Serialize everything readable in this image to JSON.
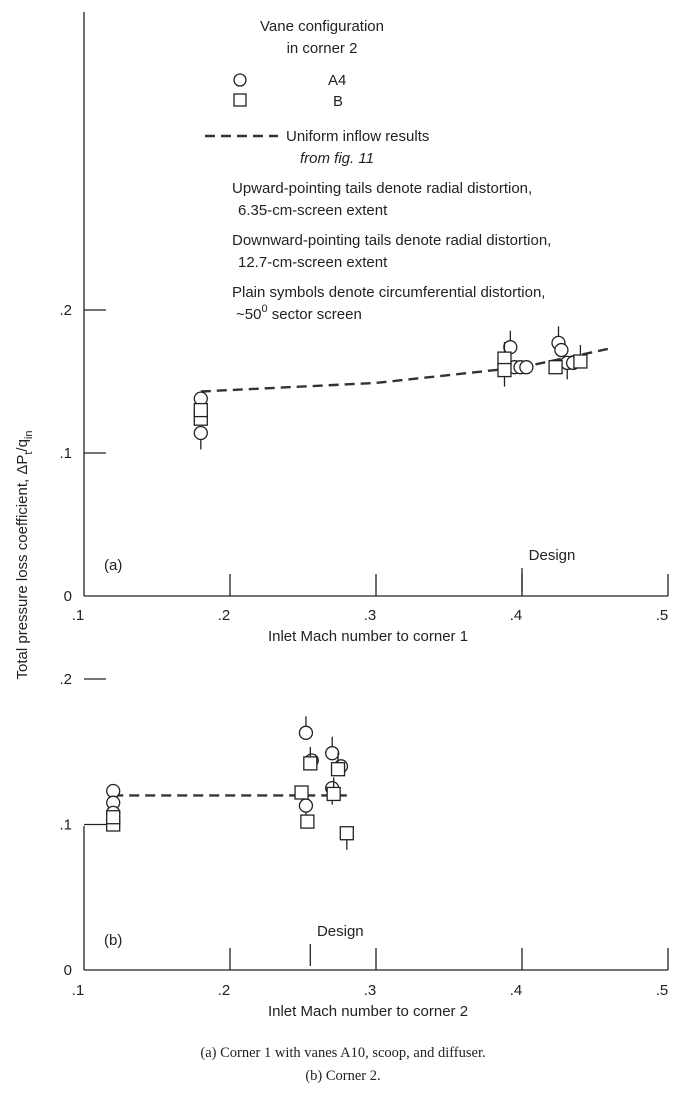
{
  "legend": {
    "heading_1": "Vane configuration",
    "heading_2": "in corner 2",
    "a4_label": "A4",
    "b_label": "B",
    "uniform_1": "Uniform inflow results",
    "uniform_2": "from fig. 11",
    "note_up_1": "Upward-pointing tails denote radial distortion,",
    "note_up_2": "6.35-cm-screen extent",
    "note_down_1": "Downward-pointing tails denote radial distortion,",
    "note_down_2": "12.7-cm-screen extent",
    "note_plain_1": "Plain symbols denote circumferential distortion,",
    "note_plain_2": "~50",
    "note_plain_deg": "0",
    "note_plain_3": " sector screen"
  },
  "ylabel_main": "Total pressure loss coefficient, ΔP",
  "ylabel_sub_t": "t",
  "ylabel_slash": "/q",
  "ylabel_sub_in": "in",
  "captions": {
    "a": "(a) Corner 1 with vanes A10, scoop, and diffuser.",
    "b": "(b) Corner 2."
  },
  "chart_data": [
    {
      "type": "scatter",
      "panel_label": "(a)",
      "xlabel": "Inlet Mach number to corner 1",
      "xlim": [
        0.1,
        0.5
      ],
      "ylim": [
        0,
        0.3
      ],
      "x_ticks": [
        0.1,
        0.2,
        0.3,
        0.4,
        0.5
      ],
      "x_tick_labels": [
        ".1",
        ".2",
        ".3",
        ".4",
        ".5"
      ],
      "y_ticks": [
        0,
        0.1,
        0.2
      ],
      "y_tick_labels": [
        "0",
        ".1",
        ".2"
      ],
      "design_mach": 0.4,
      "design_label": "Design",
      "uniform_inflow_line": {
        "x": [
          0.18,
          0.3,
          0.4,
          0.46
        ],
        "y": [
          0.143,
          0.149,
          0.16,
          0.173
        ]
      },
      "series": [
        {
          "name": "A4",
          "marker": "circle",
          "points": [
            {
              "x": 0.18,
              "y": 0.114,
              "tail": "down"
            },
            {
              "x": 0.18,
              "y": 0.138,
              "tail": "none"
            },
            {
              "x": 0.392,
              "y": 0.174,
              "tail": "up"
            },
            {
              "x": 0.395,
              "y": 0.16,
              "tail": "none"
            },
            {
              "x": 0.399,
              "y": 0.16,
              "tail": "none"
            },
            {
              "x": 0.403,
              "y": 0.16,
              "tail": "none"
            },
            {
              "x": 0.425,
              "y": 0.177,
              "tail": "up"
            },
            {
              "x": 0.427,
              "y": 0.172,
              "tail": "none"
            },
            {
              "x": 0.431,
              "y": 0.163,
              "tail": "down"
            },
            {
              "x": 0.435,
              "y": 0.163,
              "tail": "none"
            }
          ]
        },
        {
          "name": "B",
          "marker": "square",
          "points": [
            {
              "x": 0.18,
              "y": 0.124,
              "tail": "none"
            },
            {
              "x": 0.18,
              "y": 0.13,
              "tail": "none"
            },
            {
              "x": 0.388,
              "y": 0.166,
              "tail": "up"
            },
            {
              "x": 0.388,
              "y": 0.158,
              "tail": "down"
            },
            {
              "x": 0.423,
              "y": 0.16,
              "tail": "none"
            },
            {
              "x": 0.44,
              "y": 0.164,
              "tail": "up"
            }
          ]
        }
      ]
    },
    {
      "type": "scatter",
      "panel_label": "(b)",
      "xlabel": "Inlet Mach number to corner 2",
      "xlim": [
        0.1,
        0.5
      ],
      "ylim": [
        0,
        0.2
      ],
      "x_ticks": [
        0.1,
        0.2,
        0.3,
        0.4,
        0.5
      ],
      "x_tick_labels": [
        ".1",
        ".2",
        ".3",
        ".4",
        ".5"
      ],
      "y_ticks": [
        0,
        0.1,
        0.2
      ],
      "y_tick_labels": [
        "0",
        ".1",
        ".2"
      ],
      "design_mach": 0.255,
      "design_label": "Design",
      "uniform_inflow_line": {
        "x": [
          0.12,
          0.28
        ],
        "y": [
          0.12,
          0.12
        ]
      },
      "series": [
        {
          "name": "A4",
          "marker": "circle",
          "points": [
            {
              "x": 0.12,
              "y": 0.123,
              "tail": "none"
            },
            {
              "x": 0.12,
              "y": 0.115,
              "tail": "none"
            },
            {
              "x": 0.12,
              "y": 0.108,
              "tail": "down"
            },
            {
              "x": 0.252,
              "y": 0.163,
              "tail": "up"
            },
            {
              "x": 0.252,
              "y": 0.113,
              "tail": "down"
            },
            {
              "x": 0.256,
              "y": 0.144,
              "tail": "none"
            },
            {
              "x": 0.27,
              "y": 0.149,
              "tail": "up"
            },
            {
              "x": 0.27,
              "y": 0.125,
              "tail": "down"
            },
            {
              "x": 0.276,
              "y": 0.14,
              "tail": "none"
            }
          ]
        },
        {
          "name": "B",
          "marker": "square",
          "points": [
            {
              "x": 0.12,
              "y": 0.1,
              "tail": "none"
            },
            {
              "x": 0.12,
              "y": 0.105,
              "tail": "none"
            },
            {
              "x": 0.249,
              "y": 0.122,
              "tail": "none"
            },
            {
              "x": 0.253,
              "y": 0.102,
              "tail": "none"
            },
            {
              "x": 0.255,
              "y": 0.142,
              "tail": "up"
            },
            {
              "x": 0.271,
              "y": 0.121,
              "tail": "up"
            },
            {
              "x": 0.274,
              "y": 0.138,
              "tail": "up"
            },
            {
              "x": 0.28,
              "y": 0.094,
              "tail": "down"
            }
          ]
        }
      ]
    }
  ]
}
